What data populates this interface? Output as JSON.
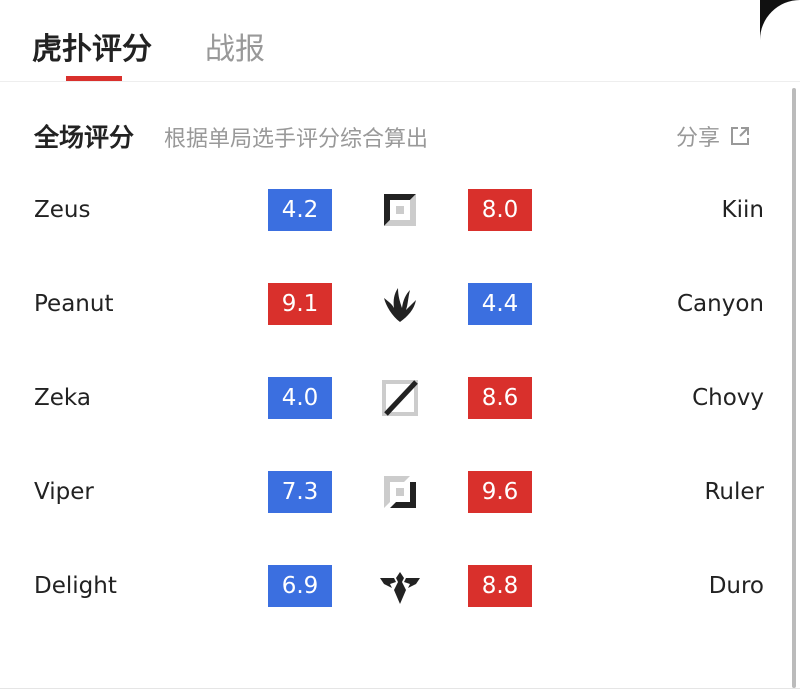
{
  "tabs": [
    {
      "label": "虎扑评分",
      "active": true
    },
    {
      "label": "战报",
      "active": false
    }
  ],
  "section": {
    "title": "全场评分",
    "subtitle": "根据单局选手评分综合算出",
    "share_label": "分享"
  },
  "colors": {
    "blue": "#3b6fe0",
    "red": "#d9302c",
    "accent": "#d9302c"
  },
  "rows": [
    {
      "left_player": "Zeus",
      "left_score": "4.2",
      "left_color": "blue",
      "icon": "lane-top-icon",
      "right_score": "8.0",
      "right_color": "red",
      "right_player": "Kiin"
    },
    {
      "left_player": "Peanut",
      "left_score": "9.1",
      "left_color": "red",
      "icon": "lane-jungle-icon",
      "right_score": "4.4",
      "right_color": "blue",
      "right_player": "Canyon"
    },
    {
      "left_player": "Zeka",
      "left_score": "4.0",
      "left_color": "blue",
      "icon": "lane-mid-icon",
      "right_score": "8.6",
      "right_color": "red",
      "right_player": "Chovy"
    },
    {
      "left_player": "Viper",
      "left_score": "7.3",
      "left_color": "blue",
      "icon": "lane-bottom-icon",
      "right_score": "9.6",
      "right_color": "red",
      "right_player": "Ruler"
    },
    {
      "left_player": "Delight",
      "left_score": "6.9",
      "left_color": "blue",
      "icon": "lane-support-icon",
      "right_score": "8.8",
      "right_color": "red",
      "right_player": "Duro"
    }
  ]
}
